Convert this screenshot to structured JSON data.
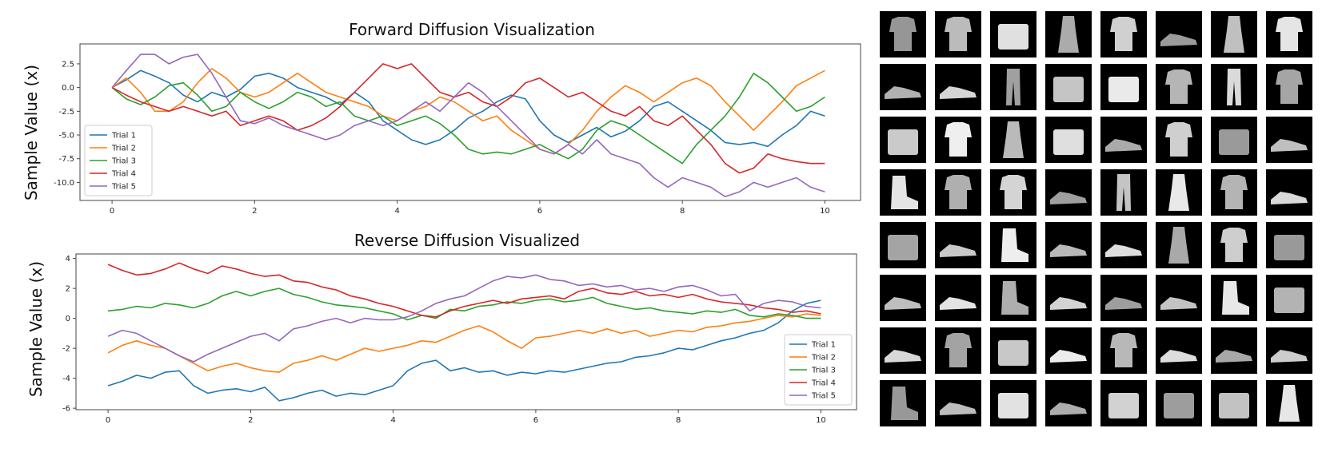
{
  "colors": {
    "series": [
      "#1f77b4",
      "#ff7f0e",
      "#2ca02c",
      "#d62728",
      "#9467bd"
    ],
    "samples_background": "#000000"
  },
  "chart_data": [
    {
      "type": "line",
      "title": "Forward Diffusion Visualization",
      "xlabel": "",
      "ylabel": "Sample Value (x)",
      "xlim": [
        -0.45,
        10.5
      ],
      "ylim": [
        -11.9,
        4.6
      ],
      "xticks": [
        "0",
        "2",
        "4",
        "6",
        "8",
        "10"
      ],
      "yticks": [
        "2.5",
        "0.0",
        "-2.5",
        "-5.0",
        "-7.5",
        "-10.0"
      ],
      "grid": false,
      "legend": "lower-left",
      "series": [
        {
          "name": "Trial 1",
          "x": [
            0,
            0.2,
            0.4,
            0.6,
            0.8,
            1,
            1.2,
            1.4,
            1.6,
            1.8,
            2,
            2.2,
            2.4,
            2.6,
            2.8,
            3,
            3.2,
            3.4,
            3.6,
            3.8,
            4,
            4.2,
            4.4,
            4.6,
            4.8,
            5,
            5.2,
            5.4,
            5.6,
            5.8,
            6,
            6.2,
            6.4,
            6.6,
            6.8,
            7,
            7.2,
            7.4,
            7.6,
            7.8,
            8,
            8.2,
            8.4,
            8.6,
            8.8,
            9,
            9.2,
            9.4,
            9.6,
            9.8,
            10
          ],
          "y": [
            0,
            0.8,
            1.8,
            1.2,
            0.5,
            -0.8,
            -1.5,
            -0.5,
            -1,
            -0.2,
            1.2,
            1.5,
            1,
            0,
            -0.5,
            -1,
            -1.8,
            -0.5,
            -1.5,
            -3.5,
            -4.5,
            -5.5,
            -6,
            -5.5,
            -4.5,
            -3.2,
            -2.5,
            -1.5,
            -0.8,
            -1.2,
            -3.5,
            -5,
            -5.8,
            -5,
            -4.2,
            -5.2,
            -4.6,
            -3.5,
            -2,
            -1.5,
            -2.5,
            -3.5,
            -4.5,
            -5.8,
            -6,
            -5.8,
            -6.2,
            -5,
            -4,
            -2.5,
            -3
          ]
        },
        {
          "name": "Trial 2",
          "x": [
            0,
            0.2,
            0.4,
            0.6,
            0.8,
            1,
            1.2,
            1.4,
            1.6,
            1.8,
            2,
            2.2,
            2.4,
            2.6,
            2.8,
            3,
            3.2,
            3.4,
            3.6,
            3.8,
            4,
            4.2,
            4.4,
            4.6,
            4.8,
            5,
            5.2,
            5.4,
            5.6,
            5.8,
            6,
            6.2,
            6.4,
            6.6,
            6.8,
            7,
            7.2,
            7.4,
            7.6,
            7.8,
            8,
            8.2,
            8.4,
            8.6,
            8.8,
            9,
            9.2,
            9.4,
            9.6,
            9.8,
            10
          ],
          "y": [
            0,
            1,
            -0.5,
            -2.5,
            -2.5,
            -1.5,
            0.5,
            2,
            1,
            -0.5,
            -1,
            -0.5,
            0.5,
            1.5,
            0.5,
            -0.5,
            -1,
            -1.5,
            -2,
            -3,
            -3.5,
            -2.5,
            -2,
            -1,
            -1.5,
            -2.5,
            -3.5,
            -3,
            -4.5,
            -5.5,
            -6.5,
            -7,
            -6,
            -4.5,
            -2.5,
            -1,
            0.2,
            -0.5,
            -1.5,
            -0.5,
            0.5,
            1,
            0.2,
            -1.5,
            -3,
            -4.5,
            -3,
            -1.5,
            0.2,
            1,
            1.8
          ]
        },
        {
          "name": "Trial 3",
          "x": [
            0,
            0.2,
            0.4,
            0.6,
            0.8,
            1,
            1.2,
            1.4,
            1.6,
            1.8,
            2,
            2.2,
            2.4,
            2.6,
            2.8,
            3,
            3.2,
            3.4,
            3.6,
            3.8,
            4,
            4.2,
            4.4,
            4.6,
            4.8,
            5,
            5.2,
            5.4,
            5.6,
            5.8,
            6,
            6.2,
            6.4,
            6.6,
            6.8,
            7,
            7.2,
            7.4,
            7.6,
            7.8,
            8,
            8.2,
            8.4,
            8.6,
            8.8,
            9,
            9.2,
            9.4,
            9.6,
            9.8,
            10
          ],
          "y": [
            0,
            -1.2,
            -1.8,
            -1,
            0.2,
            0.5,
            -0.8,
            -2.5,
            -2,
            -0.5,
            -1.5,
            -2.2,
            -1.5,
            -0.5,
            -1,
            -2,
            -1.5,
            -3,
            -3.5,
            -3,
            -4,
            -3.5,
            -3,
            -3.8,
            -5,
            -6.5,
            -7,
            -6.8,
            -7,
            -6.5,
            -6,
            -6.8,
            -7.5,
            -6.5,
            -4.5,
            -3.5,
            -4,
            -5,
            -6,
            -7,
            -8,
            -6,
            -4.5,
            -3,
            -1,
            1.5,
            0.5,
            -1,
            -2.5,
            -2,
            -1
          ]
        },
        {
          "name": "Trial 4",
          "x": [
            0,
            0.2,
            0.4,
            0.6,
            0.8,
            1,
            1.2,
            1.4,
            1.6,
            1.8,
            2,
            2.2,
            2.4,
            2.6,
            2.8,
            3,
            3.2,
            3.4,
            3.6,
            3.8,
            4,
            4.2,
            4.4,
            4.6,
            4.8,
            5,
            5.2,
            5.4,
            5.6,
            5.8,
            6,
            6.2,
            6.4,
            6.6,
            6.8,
            7,
            7.2,
            7.4,
            7.6,
            7.8,
            8,
            8.2,
            8.4,
            8.6,
            8.8,
            9,
            9.2,
            9.4,
            9.6,
            9.8,
            10
          ],
          "y": [
            0,
            -0.8,
            -1.5,
            -2,
            -2.5,
            -2,
            -2.5,
            -3,
            -2.5,
            -4,
            -3.5,
            -3,
            -3.5,
            -4.5,
            -4,
            -3.2,
            -2,
            -0.5,
            1,
            2.5,
            2,
            2.5,
            1,
            -0.5,
            -1,
            -0.5,
            -1.5,
            -2,
            -1,
            0.5,
            1,
            0,
            -1,
            -0.5,
            -1.5,
            -2.5,
            -3,
            -2,
            -3.5,
            -4,
            -3,
            -4.5,
            -6,
            -8,
            -9,
            -8.5,
            -7,
            -7.5,
            -7.8,
            -8,
            -8
          ]
        },
        {
          "name": "Trial 5",
          "x": [
            0,
            0.2,
            0.4,
            0.6,
            0.8,
            1,
            1.2,
            1.4,
            1.6,
            1.8,
            2,
            2.2,
            2.4,
            2.6,
            2.8,
            3,
            3.2,
            3.4,
            3.6,
            3.8,
            4,
            4.2,
            4.4,
            4.6,
            4.8,
            5,
            5.2,
            5.4,
            5.6,
            5.8,
            6,
            6.2,
            6.4,
            6.6,
            6.8,
            7,
            7.2,
            7.4,
            7.6,
            7.8,
            8,
            8.2,
            8.4,
            8.6,
            8.8,
            9,
            9.2,
            9.4,
            9.6,
            9.8,
            10
          ],
          "y": [
            0,
            1.8,
            3.5,
            3.5,
            2.5,
            3.2,
            3.5,
            1.5,
            -1,
            -3.5,
            -3.8,
            -3.2,
            -4,
            -4.5,
            -5,
            -5.5,
            -5,
            -4,
            -3.5,
            -4,
            -3.5,
            -2.5,
            -1.5,
            -2.5,
            -1,
            0.5,
            -0.5,
            -2,
            -3.5,
            -5,
            -6.5,
            -7,
            -6,
            -7,
            -5.5,
            -7,
            -7.5,
            -8,
            -9.5,
            -10.5,
            -9.5,
            -10,
            -10.5,
            -11.5,
            -11,
            -10,
            -10.5,
            -10,
            -9.5,
            -10.5,
            -11
          ]
        }
      ]
    },
    {
      "type": "line",
      "title": "Reverse Diffusion Visualized",
      "xlabel": "",
      "ylabel": "Sample Value (x)",
      "xlim": [
        -0.45,
        10.5
      ],
      "ylim": [
        -6.1,
        4.3
      ],
      "xticks": [
        "0",
        "2",
        "4",
        "6",
        "8",
        "10"
      ],
      "yticks": [
        "4",
        "2",
        "0",
        "-2",
        "-4",
        "-6"
      ],
      "grid": false,
      "legend": "lower-right",
      "series": [
        {
          "name": "Trial 1",
          "x": [
            0,
            0.2,
            0.4,
            0.6,
            0.8,
            1,
            1.2,
            1.4,
            1.6,
            1.8,
            2,
            2.2,
            2.4,
            2.6,
            2.8,
            3,
            3.2,
            3.4,
            3.6,
            3.8,
            4,
            4.2,
            4.4,
            4.6,
            4.8,
            5,
            5.2,
            5.4,
            5.6,
            5.8,
            6,
            6.2,
            6.4,
            6.6,
            6.8,
            7,
            7.2,
            7.4,
            7.6,
            7.8,
            8,
            8.2,
            8.4,
            8.6,
            8.8,
            9,
            9.2,
            9.4,
            9.6,
            9.8,
            10
          ],
          "y": [
            -4.5,
            -4.2,
            -3.8,
            -4,
            -3.6,
            -3.5,
            -4.5,
            -5,
            -4.8,
            -4.7,
            -4.9,
            -4.6,
            -5.5,
            -5.3,
            -5,
            -4.8,
            -5.2,
            -5,
            -5.1,
            -4.8,
            -4.5,
            -3.5,
            -3,
            -2.8,
            -3.5,
            -3.3,
            -3.6,
            -3.5,
            -3.8,
            -3.6,
            -3.7,
            -3.5,
            -3.6,
            -3.4,
            -3.2,
            -3,
            -2.9,
            -2.6,
            -2.5,
            -2.3,
            -2,
            -2.1,
            -1.8,
            -1.5,
            -1.3,
            -1,
            -0.8,
            -0.3,
            0.5,
            1,
            1.2
          ]
        },
        {
          "name": "Trial 2",
          "x": [
            0,
            0.2,
            0.4,
            0.6,
            0.8,
            1,
            1.2,
            1.4,
            1.6,
            1.8,
            2,
            2.2,
            2.4,
            2.6,
            2.8,
            3,
            3.2,
            3.4,
            3.6,
            3.8,
            4,
            4.2,
            4.4,
            4.6,
            4.8,
            5,
            5.2,
            5.4,
            5.6,
            5.8,
            6,
            6.2,
            6.4,
            6.6,
            6.8,
            7,
            7.2,
            7.4,
            7.6,
            7.8,
            8,
            8.2,
            8.4,
            8.6,
            8.8,
            9,
            9.2,
            9.4,
            9.6,
            9.8,
            10
          ],
          "y": [
            -2.3,
            -1.8,
            -1.5,
            -1.8,
            -2,
            -2.5,
            -3,
            -3.5,
            -3.2,
            -3,
            -3.3,
            -3.5,
            -3.6,
            -3,
            -2.8,
            -2.5,
            -2.8,
            -2.4,
            -2,
            -2.2,
            -2,
            -1.8,
            -1.5,
            -1.6,
            -1.2,
            -0.8,
            -0.5,
            -0.9,
            -1.5,
            -2,
            -1.3,
            -1.2,
            -1,
            -0.8,
            -1,
            -0.7,
            -1,
            -0.8,
            -1.2,
            -1,
            -0.8,
            -0.9,
            -0.6,
            -0.5,
            -0.3,
            -0.2,
            0,
            0.2,
            0.1,
            0.3,
            0.2
          ]
        },
        {
          "name": "Trial 3",
          "x": [
            0,
            0.2,
            0.4,
            0.6,
            0.8,
            1,
            1.2,
            1.4,
            1.6,
            1.8,
            2,
            2.2,
            2.4,
            2.6,
            2.8,
            3,
            3.2,
            3.4,
            3.6,
            3.8,
            4,
            4.2,
            4.4,
            4.6,
            4.8,
            5,
            5.2,
            5.4,
            5.6,
            5.8,
            6,
            6.2,
            6.4,
            6.6,
            6.8,
            7,
            7.2,
            7.4,
            7.6,
            7.8,
            8,
            8.2,
            8.4,
            8.6,
            8.8,
            9,
            9.2,
            9.4,
            9.6,
            9.8,
            10
          ],
          "y": [
            0.5,
            0.6,
            0.8,
            0.7,
            1,
            0.9,
            0.7,
            1,
            1.5,
            1.8,
            1.5,
            1.8,
            2,
            1.6,
            1.4,
            1.1,
            0.9,
            0.8,
            0.7,
            0.5,
            0.3,
            -0.1,
            0.2,
            0,
            0.6,
            0.5,
            0.8,
            0.9,
            1.1,
            1,
            1.2,
            1.3,
            1.1,
            1.2,
            1.4,
            1,
            0.8,
            0.6,
            0.7,
            0.5,
            0.4,
            0.3,
            0.5,
            0.4,
            0.6,
            0.2,
            0.1,
            0.3,
            0.2,
            0,
            0
          ]
        },
        {
          "name": "Trial 4",
          "x": [
            0,
            0.2,
            0.4,
            0.6,
            0.8,
            1,
            1.2,
            1.4,
            1.6,
            1.8,
            2,
            2.2,
            2.4,
            2.6,
            2.8,
            3,
            3.2,
            3.4,
            3.6,
            3.8,
            4,
            4.2,
            4.4,
            4.6,
            4.8,
            5,
            5.2,
            5.4,
            5.6,
            5.8,
            6,
            6.2,
            6.4,
            6.6,
            6.8,
            7,
            7.2,
            7.4,
            7.6,
            7.8,
            8,
            8.2,
            8.4,
            8.6,
            8.8,
            9,
            9.2,
            9.4,
            9.6,
            9.8,
            10
          ],
          "y": [
            3.6,
            3.2,
            2.9,
            3,
            3.3,
            3.7,
            3.3,
            3,
            3.5,
            3.3,
            3,
            2.8,
            2.9,
            2.5,
            2.4,
            2.1,
            1.9,
            1.5,
            1.3,
            1,
            0.8,
            0.5,
            0.2,
            0.1,
            0.5,
            0.8,
            1,
            1.2,
            1,
            1.3,
            1.4,
            1.5,
            1.3,
            1.8,
            2,
            1.7,
            1.6,
            1.8,
            1.5,
            1.6,
            1.4,
            1.6,
            1.3,
            1.1,
            1,
            0.9,
            0.7,
            0.6,
            0.4,
            0.5,
            0.3
          ]
        },
        {
          "name": "Trial 5",
          "x": [
            0,
            0.2,
            0.4,
            0.6,
            0.8,
            1,
            1.2,
            1.4,
            1.6,
            1.8,
            2,
            2.2,
            2.4,
            2.6,
            2.8,
            3,
            3.2,
            3.4,
            3.6,
            3.8,
            4,
            4.2,
            4.4,
            4.6,
            4.8,
            5,
            5.2,
            5.4,
            5.6,
            5.8,
            6,
            6.2,
            6.4,
            6.6,
            6.8,
            7,
            7.2,
            7.4,
            7.6,
            7.8,
            8,
            8.2,
            8.4,
            8.6,
            8.8,
            9,
            9.2,
            9.4,
            9.6,
            9.8,
            10
          ],
          "y": [
            -1.2,
            -0.8,
            -1,
            -1.5,
            -2,
            -2.5,
            -2.9,
            -2.4,
            -2,
            -1.6,
            -1.2,
            -1,
            -1.5,
            -0.7,
            -0.5,
            -0.2,
            0,
            -0.3,
            0,
            -0.1,
            -0.1,
            0.1,
            0.5,
            1,
            1.3,
            1.5,
            2,
            2.5,
            2.8,
            2.7,
            2.9,
            2.6,
            2.5,
            2.2,
            2.3,
            2.1,
            2.2,
            1.9,
            2,
            1.8,
            2.1,
            2.2,
            1.9,
            1.5,
            1.6,
            0.5,
            1,
            1.2,
            1.1,
            0.8,
            0.7
          ]
        }
      ]
    }
  ]
}
